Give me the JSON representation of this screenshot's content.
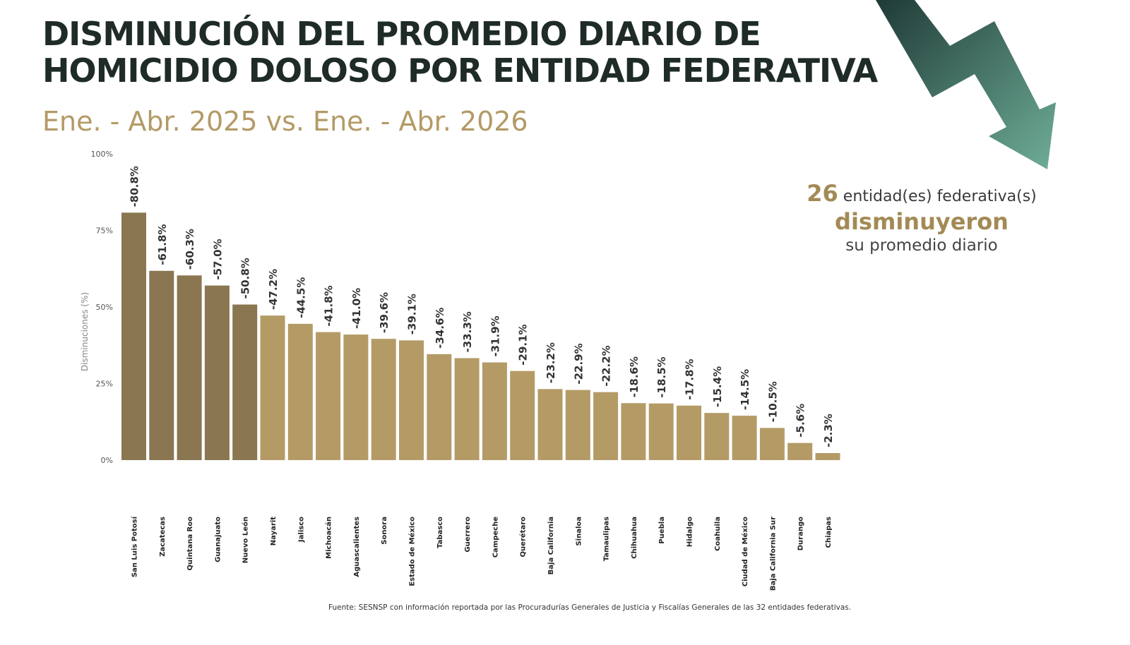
{
  "title_line1": "DISMINUCIÓN DEL PROMEDIO DIARIO DE",
  "title_line2": "HOMICIDIO DOLOSO POR ENTIDAD FEDERATIVA",
  "subtitle": "Ene. - Abr. 2025 vs. Ene. - Abr. 2026",
  "callout": {
    "count": "26",
    "count_suffix": "entidad(es) federativa(s)",
    "emphasis": "disminuyeron",
    "tail": "su promedio diario"
  },
  "source": "Fuente: SESNSP con información reportada por las Procuradurías Generales de Justicia y Fiscalías Generales de las 32 entidades federativas.",
  "colors": {
    "dark_bar": "#8a7650",
    "light_bar": "#b49b66",
    "title": "#1f2b27",
    "accent": "#b39a65",
    "arrow_dark": "#1f3a36",
    "arrow_light": "#6fae98"
  },
  "chart_data": {
    "type": "bar",
    "ylabel": "Disminuciones (%)",
    "ylim": [
      0,
      100
    ],
    "yticks": [
      "0%",
      "25%",
      "50%",
      "75%",
      "100%"
    ],
    "ytick_values": [
      0,
      25,
      50,
      75,
      100
    ],
    "grid": false,
    "highlight_top_n": 5,
    "categories": [
      "San Luis Potosí",
      "Zacatecas",
      "Quintana Roo",
      "Guanajuato",
      "Nuevo León",
      "Nayarit",
      "Jalisco",
      "Michoacán",
      "Aguascalientes",
      "Sonora",
      "Estado de México",
      "Tabasco",
      "Guerrero",
      "Campeche",
      "Querétaro",
      "Baja California",
      "Sinaloa",
      "Tamaulipas",
      "Chihuahua",
      "Puebla",
      "Hidalgo",
      "Coahuila",
      "Ciudad de México",
      "Baja California Sur",
      "Durango",
      "Chiapas"
    ],
    "values": [
      80.8,
      61.8,
      60.3,
      57.0,
      50.8,
      47.2,
      44.5,
      41.8,
      41.0,
      39.6,
      39.1,
      34.6,
      33.3,
      31.9,
      29.1,
      23.2,
      22.9,
      22.2,
      18.6,
      18.5,
      17.8,
      15.4,
      14.5,
      10.5,
      5.6,
      2.3
    ],
    "data_labels": [
      "-80.8%",
      "-61.8%",
      "-60.3%",
      "-57.0%",
      "-50.8%",
      "-47.2%",
      "-44.5%",
      "-41.8%",
      "-41.0%",
      "-39.6%",
      "-39.1%",
      "-34.6%",
      "-33.3%",
      "-31.9%",
      "-29.1%",
      "-23.2%",
      "-22.9%",
      "-22.2%",
      "-18.6%",
      "-18.5%",
      "-17.8%",
      "-15.4%",
      "-14.5%",
      "-10.5%",
      "-5.6%",
      "-2.3%"
    ]
  }
}
